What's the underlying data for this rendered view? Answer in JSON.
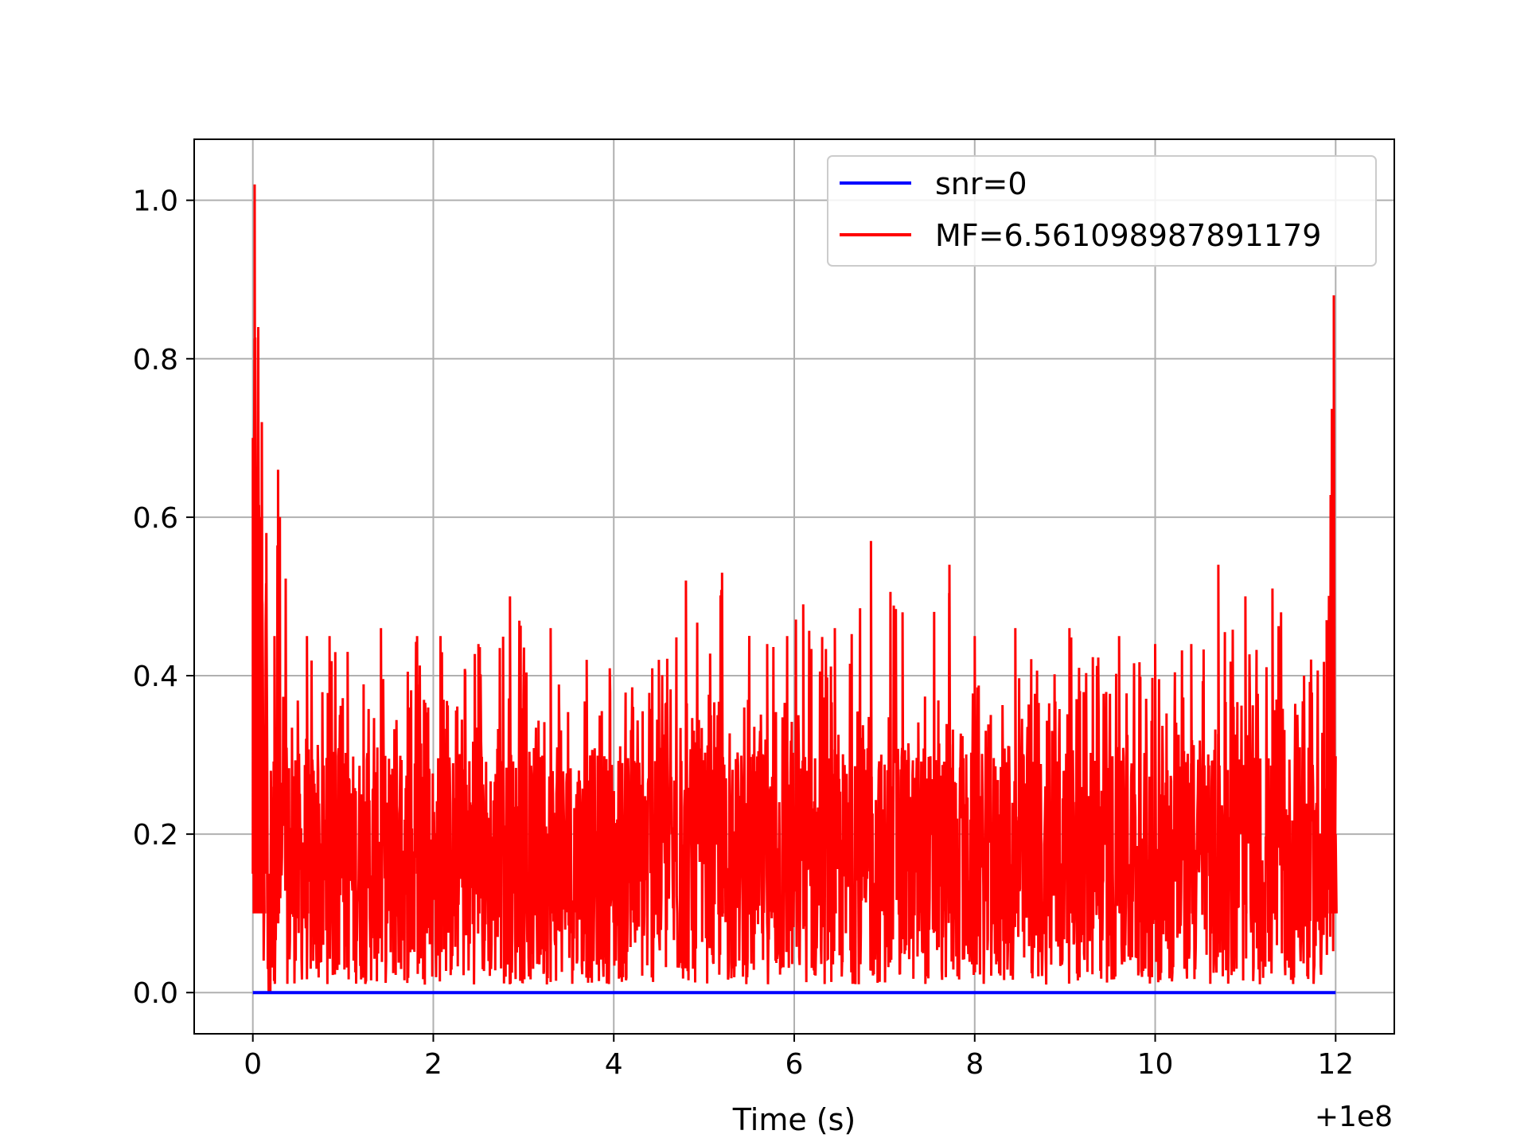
{
  "chart_data": {
    "type": "line",
    "xlabel": "Time (s)",
    "x_offset_label": "+1e8",
    "xlim": [
      -0.65,
      12.65
    ],
    "ylim": [
      -0.052,
      1.077
    ],
    "x_ticks": [
      0,
      2,
      4,
      6,
      8,
      10,
      12
    ],
    "x_tick_labels": [
      "0",
      "2",
      "4",
      "6",
      "8",
      "10",
      "12"
    ],
    "y_ticks": [
      0.0,
      0.2,
      0.4,
      0.6,
      0.8,
      1.0
    ],
    "y_tick_labels": [
      "0.0",
      "0.2",
      "0.4",
      "0.6",
      "0.8",
      "1.0"
    ],
    "grid": true,
    "legend_position": "top-right",
    "series": [
      {
        "name": "snr=0",
        "color": "#0000ff",
        "x": [
          0,
          12
        ],
        "y": [
          0,
          0
        ]
      },
      {
        "name": "MF=6.561098987891179",
        "color": "#ff0000",
        "x": [
          0,
          0.02,
          0.04,
          0.06,
          0.08,
          0.1,
          0.12,
          0.15,
          0.18,
          0.2,
          0.24,
          0.28,
          0.6,
          0.85,
          1.05,
          1.42,
          1.82,
          2.08,
          2.5,
          2.85,
          3.3,
          3.7,
          4.5,
          4.8,
          5.2,
          5.7,
          6.1,
          6.45,
          6.85,
          7.2,
          7.72,
          8.0,
          8.45,
          9.05,
          9.6,
          10.0,
          10.4,
          10.7,
          11.0,
          11.3,
          11.65,
          11.9,
          11.98,
          12.0
        ],
        "y": [
          0.7,
          1.02,
          0.63,
          0.84,
          0.48,
          0.72,
          0.27,
          0.58,
          0.01,
          0.28,
          0.45,
          0.66,
          0.45,
          0.45,
          0.43,
          0.46,
          0.45,
          0.45,
          0.44,
          0.5,
          0.46,
          0.42,
          0.42,
          0.52,
          0.53,
          0.44,
          0.49,
          0.46,
          0.57,
          0.48,
          0.54,
          0.45,
          0.46,
          0.46,
          0.45,
          0.44,
          0.44,
          0.54,
          0.5,
          0.51,
          0.4,
          0.47,
          0.88,
          0.2
        ]
      }
    ]
  }
}
